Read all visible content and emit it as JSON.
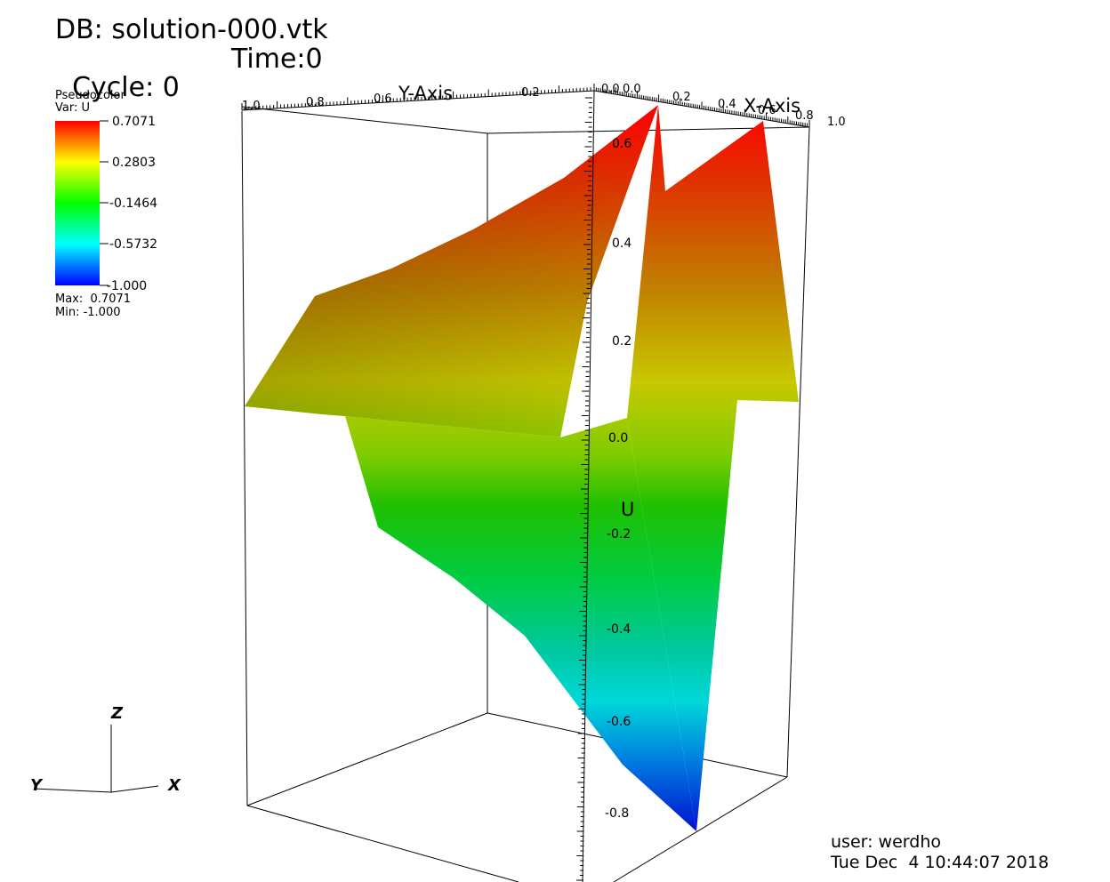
{
  "header": {
    "db_label": "DB: solution-000.vtk",
    "cycle_label": "Cycle: 0",
    "time_label": "Time:0"
  },
  "legend": {
    "plot_type": "Pseudocolor",
    "var_label": "Var: U",
    "ticks": [
      "0.7071",
      "0.2803",
      "-0.1464",
      "-0.5732",
      "-1.000"
    ],
    "max_label": "Max:  0.7071",
    "min_label": "Min: -1.000",
    "colors": [
      "#ff0000",
      "#ffff00",
      "#00ff00",
      "#00ffff",
      "#0000ff"
    ]
  },
  "axes": {
    "y_axis_title": "Y-Axis",
    "x_axis_title": "X-Axis",
    "z_axis_title": "U",
    "y_ticks": [
      "1.0",
      "0.8",
      "0.6",
      "0.2",
      "0.0"
    ],
    "x_ticks": [
      "0.0",
      "0.2",
      "0.4",
      "0.6",
      "0.8",
      "1.0"
    ],
    "z_ticks": [
      "0.6",
      "0.4",
      "0.2",
      "0.0",
      "-0.2",
      "-0.4",
      "-0.6",
      "-0.8"
    ]
  },
  "triad": {
    "z": "Z",
    "y": "Y",
    "x": "X"
  },
  "footer": {
    "user": "user: werdho",
    "timestamp": "Tue Dec  4 10:44:07 2018"
  },
  "chart_data": {
    "type": "surface",
    "var": "U",
    "range": [
      -1.0,
      0.7071
    ],
    "corner_values": {
      "x0_y1": 0.05,
      "x1_y1": 0.05,
      "x1_y0_peak": 0.7071,
      "x0_y0_trough": -1.0
    }
  }
}
